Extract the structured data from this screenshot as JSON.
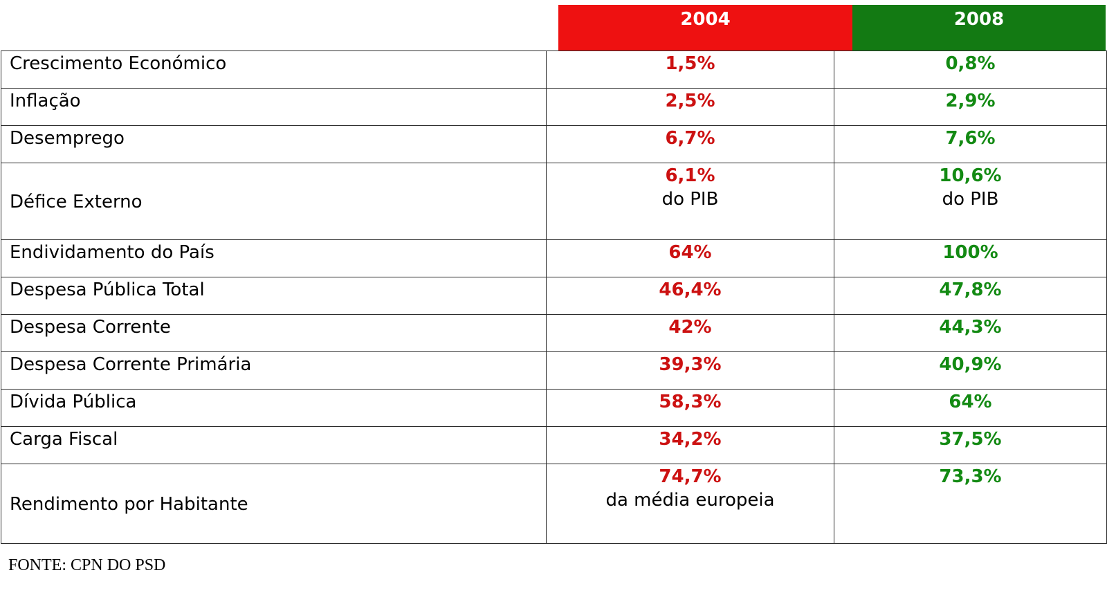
{
  "colors": {
    "header_2004_bg": "#ee1111",
    "header_2008_bg": "#137a13",
    "value_2004": "#cc1111",
    "value_2008": "#138a13"
  },
  "headers": {
    "col_2004": "2004",
    "col_2008": "2008"
  },
  "rows": [
    {
      "label": "Crescimento Económico",
      "v2004": "1,5%",
      "v2008": "0,8%"
    },
    {
      "label": "Inflação",
      "v2004": "2,5%",
      "v2008": "2,9%"
    },
    {
      "label": "Desemprego",
      "v2004": "6,7%",
      "v2008": "7,6%"
    },
    {
      "label": "Défice Externo",
      "v2004": "6,1%",
      "v2004_note": "do PIB",
      "v2008": "10,6%",
      "v2008_note": "do PIB"
    },
    {
      "label": "Endividamento do País",
      "v2004": "64%",
      "v2008": "100%"
    },
    {
      "label": "Despesa Pública Total",
      "v2004": "46,4%",
      "v2008": "47,8%"
    },
    {
      "label": "Despesa Corrente",
      "v2004": "42%",
      "v2008": "44,3%"
    },
    {
      "label": "Despesa Corrente Primária",
      "v2004": "39,3%",
      "v2008": "40,9%"
    },
    {
      "label": "Dívida Pública",
      "v2004": "58,3%",
      "v2008": "64%"
    },
    {
      "label": "Carga Fiscal",
      "v2004": "34,2%",
      "v2008": "37,5%"
    },
    {
      "label": "Rendimento por Habitante",
      "v2004": "74,7%",
      "v2004_note": "da média europeia",
      "v2008": "73,3%"
    }
  ],
  "source": "FONTE: CPN DO PSD"
}
